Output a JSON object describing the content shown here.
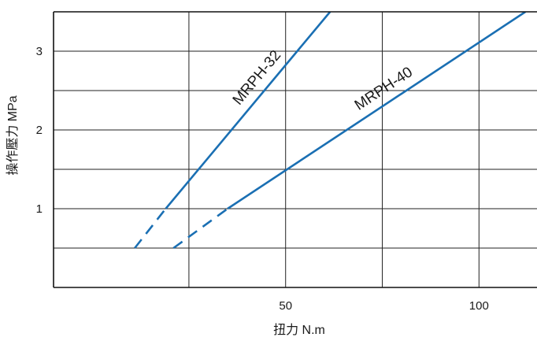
{
  "chart_data": {
    "type": "line",
    "title": "",
    "xlabel": "扭力 N.m",
    "ylabel": "操作壓力  MPa",
    "xlim": [
      -10,
      115
    ],
    "ylim": [
      0,
      3.5
    ],
    "x_ticks": [
      50,
      100
    ],
    "y_ticks": [
      1,
      2,
      3
    ],
    "x_gridlines": [
      25,
      50,
      75,
      100
    ],
    "y_gridlines": [
      0.5,
      1,
      1.5,
      2,
      2.5,
      3
    ],
    "grid": true,
    "series": [
      {
        "name": "MRPH-32",
        "color": "#1a6fb3",
        "dashed_segment": [
          [
            11,
            0.5
          ],
          [
            19,
            1.0
          ]
        ],
        "points": [
          [
            19,
            1.0
          ],
          [
            61.5,
            3.5
          ]
        ]
      },
      {
        "name": "MRPH-40",
        "color": "#1a6fb3",
        "dashed_segment": [
          [
            21,
            0.5
          ],
          [
            35,
            1.0
          ]
        ],
        "points": [
          [
            35,
            1.0
          ],
          [
            112,
            3.5
          ]
        ]
      }
    ]
  }
}
